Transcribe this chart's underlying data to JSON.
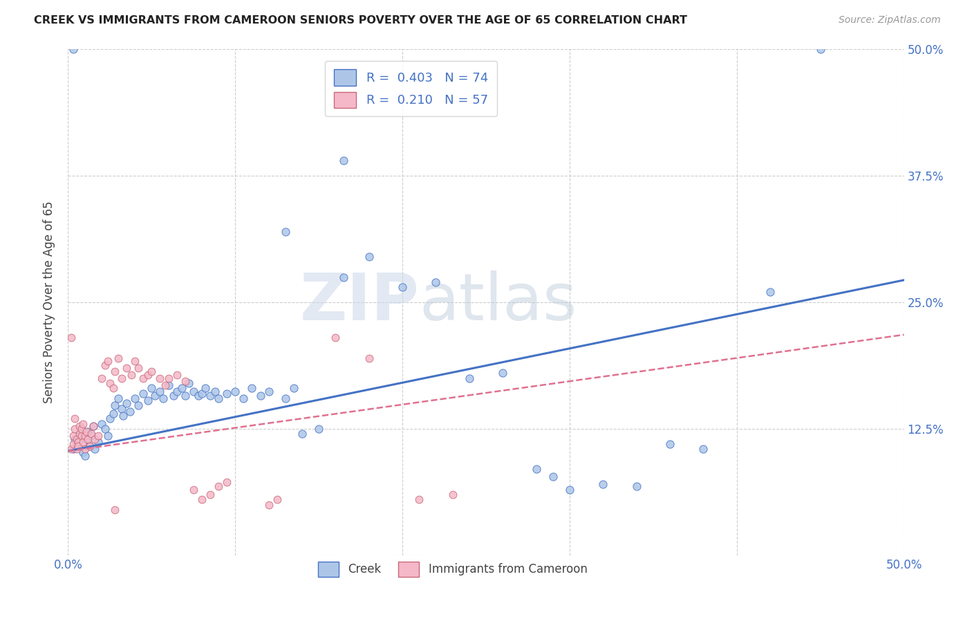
{
  "title": "CREEK VS IMMIGRANTS FROM CAMEROON SENIORS POVERTY OVER THE AGE OF 65 CORRELATION CHART",
  "source": "Source: ZipAtlas.com",
  "ylabel": "Seniors Poverty Over the Age of 65",
  "xlim": [
    0.0,
    0.5
  ],
  "ylim": [
    0.0,
    0.5
  ],
  "xticks": [
    0.0,
    0.1,
    0.2,
    0.3,
    0.4,
    0.5
  ],
  "yticks": [
    0.0,
    0.125,
    0.25,
    0.375,
    0.5
  ],
  "xticklabels": [
    "0.0%",
    "",
    "",
    "",
    "",
    "50.0%"
  ],
  "yticklabels_right": [
    "",
    "12.5%",
    "25.0%",
    "37.5%",
    "50.0%"
  ],
  "legend1_label": "Creek",
  "legend2_label": "Immigrants from Cameroon",
  "r1": 0.403,
  "n1": 74,
  "r2": 0.21,
  "n2": 57,
  "color_creek": "#adc6e8",
  "color_cameroon": "#f5b8c8",
  "color_line_creek": "#4472c4",
  "color_line_cameroon": "#e07090",
  "color_text_blue": "#4472c4",
  "watermark_zip": "ZIP",
  "watermark_atlas": "atlas",
  "line_creek_x0": 0.0,
  "line_creek_y0": 0.103,
  "line_creek_x1": 0.5,
  "line_creek_y1": 0.272,
  "line_cam_x0": 0.0,
  "line_cam_y0": 0.103,
  "line_cam_x1": 0.5,
  "line_cam_y1": 0.218,
  "creek_points": [
    [
      0.003,
      0.5
    ],
    [
      0.003,
      0.105
    ],
    [
      0.004,
      0.115
    ],
    [
      0.005,
      0.108
    ],
    [
      0.006,
      0.112
    ],
    [
      0.007,
      0.118
    ],
    [
      0.008,
      0.125
    ],
    [
      0.009,
      0.102
    ],
    [
      0.01,
      0.098
    ],
    [
      0.011,
      0.115
    ],
    [
      0.012,
      0.122
    ],
    [
      0.013,
      0.108
    ],
    [
      0.014,
      0.118
    ],
    [
      0.015,
      0.128
    ],
    [
      0.016,
      0.105
    ],
    [
      0.018,
      0.112
    ],
    [
      0.02,
      0.13
    ],
    [
      0.022,
      0.125
    ],
    [
      0.024,
      0.118
    ],
    [
      0.025,
      0.135
    ],
    [
      0.027,
      0.14
    ],
    [
      0.028,
      0.148
    ],
    [
      0.03,
      0.155
    ],
    [
      0.032,
      0.145
    ],
    [
      0.033,
      0.138
    ],
    [
      0.035,
      0.15
    ],
    [
      0.037,
      0.142
    ],
    [
      0.04,
      0.155
    ],
    [
      0.042,
      0.148
    ],
    [
      0.045,
      0.16
    ],
    [
      0.048,
      0.153
    ],
    [
      0.05,
      0.165
    ],
    [
      0.052,
      0.158
    ],
    [
      0.055,
      0.162
    ],
    [
      0.057,
      0.155
    ],
    [
      0.06,
      0.168
    ],
    [
      0.063,
      0.158
    ],
    [
      0.065,
      0.162
    ],
    [
      0.068,
      0.165
    ],
    [
      0.07,
      0.158
    ],
    [
      0.072,
      0.17
    ],
    [
      0.075,
      0.162
    ],
    [
      0.078,
      0.158
    ],
    [
      0.08,
      0.16
    ],
    [
      0.082,
      0.165
    ],
    [
      0.085,
      0.158
    ],
    [
      0.088,
      0.162
    ],
    [
      0.09,
      0.155
    ],
    [
      0.095,
      0.16
    ],
    [
      0.1,
      0.162
    ],
    [
      0.105,
      0.155
    ],
    [
      0.11,
      0.165
    ],
    [
      0.115,
      0.158
    ],
    [
      0.12,
      0.162
    ],
    [
      0.13,
      0.155
    ],
    [
      0.135,
      0.165
    ],
    [
      0.14,
      0.12
    ],
    [
      0.15,
      0.125
    ],
    [
      0.165,
      0.275
    ],
    [
      0.18,
      0.295
    ],
    [
      0.2,
      0.265
    ],
    [
      0.22,
      0.27
    ],
    [
      0.24,
      0.175
    ],
    [
      0.26,
      0.18
    ],
    [
      0.28,
      0.085
    ],
    [
      0.29,
      0.078
    ],
    [
      0.3,
      0.065
    ],
    [
      0.32,
      0.07
    ],
    [
      0.34,
      0.068
    ],
    [
      0.36,
      0.11
    ],
    [
      0.38,
      0.105
    ],
    [
      0.42,
      0.26
    ],
    [
      0.45,
      0.5
    ],
    [
      0.165,
      0.39
    ],
    [
      0.13,
      0.32
    ]
  ],
  "cam_points": [
    [
      0.002,
      0.215
    ],
    [
      0.002,
      0.105
    ],
    [
      0.003,
      0.11
    ],
    [
      0.003,
      0.118
    ],
    [
      0.004,
      0.125
    ],
    [
      0.004,
      0.135
    ],
    [
      0.005,
      0.105
    ],
    [
      0.005,
      0.115
    ],
    [
      0.006,
      0.112
    ],
    [
      0.006,
      0.108
    ],
    [
      0.007,
      0.12
    ],
    [
      0.007,
      0.128
    ],
    [
      0.008,
      0.118
    ],
    [
      0.008,
      0.125
    ],
    [
      0.009,
      0.13
    ],
    [
      0.009,
      0.112
    ],
    [
      0.01,
      0.105
    ],
    [
      0.01,
      0.118
    ],
    [
      0.011,
      0.122
    ],
    [
      0.012,
      0.115
    ],
    [
      0.013,
      0.108
    ],
    [
      0.014,
      0.12
    ],
    [
      0.015,
      0.128
    ],
    [
      0.016,
      0.115
    ],
    [
      0.018,
      0.118
    ],
    [
      0.02,
      0.175
    ],
    [
      0.022,
      0.188
    ],
    [
      0.024,
      0.192
    ],
    [
      0.025,
      0.17
    ],
    [
      0.027,
      0.165
    ],
    [
      0.028,
      0.182
    ],
    [
      0.03,
      0.195
    ],
    [
      0.032,
      0.175
    ],
    [
      0.035,
      0.185
    ],
    [
      0.038,
      0.178
    ],
    [
      0.04,
      0.192
    ],
    [
      0.042,
      0.185
    ],
    [
      0.045,
      0.175
    ],
    [
      0.048,
      0.178
    ],
    [
      0.05,
      0.182
    ],
    [
      0.055,
      0.175
    ],
    [
      0.058,
      0.168
    ],
    [
      0.06,
      0.175
    ],
    [
      0.065,
      0.178
    ],
    [
      0.07,
      0.172
    ],
    [
      0.075,
      0.065
    ],
    [
      0.08,
      0.055
    ],
    [
      0.085,
      0.06
    ],
    [
      0.09,
      0.068
    ],
    [
      0.095,
      0.072
    ],
    [
      0.12,
      0.05
    ],
    [
      0.125,
      0.055
    ],
    [
      0.16,
      0.215
    ],
    [
      0.18,
      0.195
    ],
    [
      0.21,
      0.055
    ],
    [
      0.23,
      0.06
    ],
    [
      0.028,
      0.045
    ]
  ]
}
